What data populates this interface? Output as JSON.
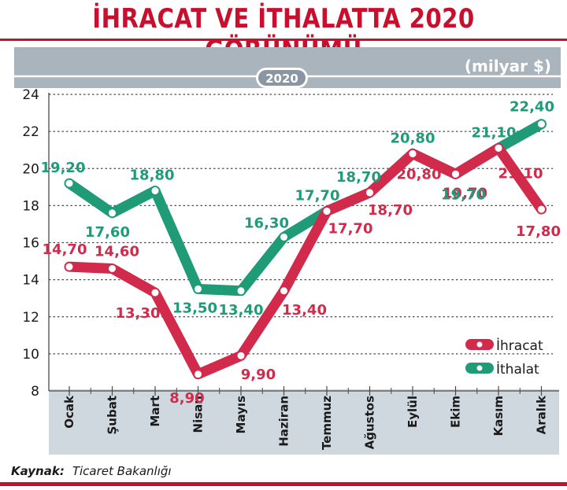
{
  "header": {
    "title": "İHRACAT VE İTHALATTA 2020 GÖRÜNÜMÜ",
    "year_badge": "2020",
    "unit": "(milyar $)"
  },
  "footer": {
    "source_label": "Kaynak:",
    "source_value": "Ticaret Bakanlığı"
  },
  "chart_data": {
    "type": "line",
    "categories": [
      "Ocak",
      "Şubat",
      "Mart",
      "Nisan",
      "Mayıs",
      "Haziran",
      "Temmuz",
      "Ağustos",
      "Eylül",
      "Ekim",
      "Kasım",
      "Aralık"
    ],
    "series": [
      {
        "name": "İhracat",
        "color": "#d12a4b",
        "values": [
          14.7,
          14.6,
          13.3,
          8.9,
          9.9,
          13.4,
          17.7,
          18.7,
          20.8,
          19.7,
          21.1,
          17.8
        ],
        "labels": [
          "14,70",
          "14,60",
          "13,30",
          "8,90",
          "9,90",
          "13,40",
          "17,70",
          "18,70",
          "20,80",
          "19,70",
          "21,10",
          "17,80"
        ]
      },
      {
        "name": "İthalat",
        "color": "#1f9b78",
        "values": [
          19.2,
          17.6,
          18.8,
          13.5,
          13.4,
          16.3,
          17.7,
          18.7,
          20.8,
          19.7,
          21.1,
          22.4
        ],
        "labels": [
          "19,20",
          "17,60",
          "18,80",
          "13,50",
          "13,40",
          "16,30",
          "17,70",
          "18,70",
          "20,80",
          "19,70",
          "21,10",
          "22,40"
        ]
      }
    ],
    "ylim": [
      8,
      24
    ],
    "yticks": [
      8,
      10,
      12,
      14,
      16,
      18,
      20,
      22,
      24
    ],
    "grid": true,
    "legend_position": "right"
  }
}
